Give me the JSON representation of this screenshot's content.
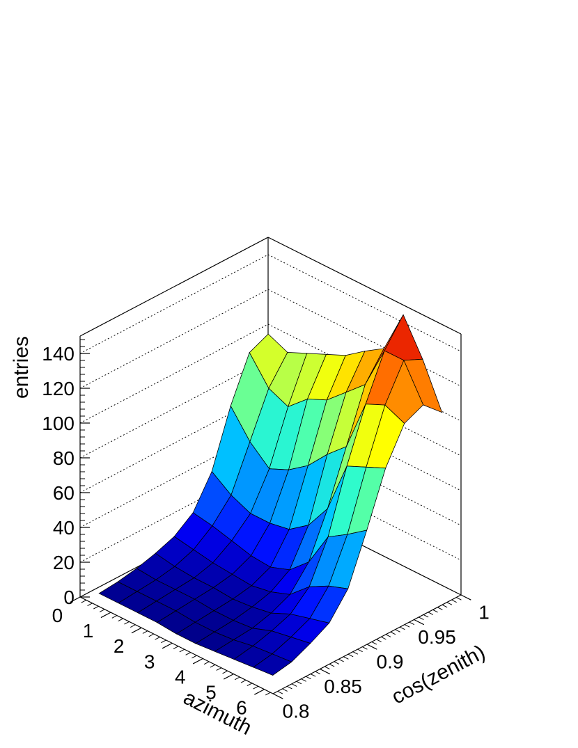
{
  "chart_data": {
    "type": "surface3d",
    "title": "",
    "xlabel": "azimuth",
    "ylabel": "cos(zenith)",
    "zlabel": "entries",
    "xlim": [
      0,
      6.2832
    ],
    "ylim": [
      0.8,
      1.0
    ],
    "zlim": [
      0,
      150
    ],
    "x_ticks": [
      "0",
      "1",
      "2",
      "3",
      "4",
      "5",
      "6"
    ],
    "y_ticks": [
      "0.8",
      "0.85",
      "0.9",
      "0.95",
      "1"
    ],
    "z_ticks": [
      "0",
      "20",
      "40",
      "60",
      "80",
      "100",
      "120",
      "140"
    ],
    "x": [
      0.31,
      0.94,
      1.57,
      2.2,
      2.83,
      3.46,
      4.08,
      4.71,
      5.34,
      5.97
    ],
    "y": [
      0.81,
      0.83,
      0.85,
      0.87,
      0.89,
      0.91,
      0.93,
      0.95,
      0.97,
      0.99
    ],
    "z": [
      [
        2,
        3,
        5,
        8,
        12,
        20,
        38,
        70,
        95,
        100
      ],
      [
        2,
        3,
        4,
        6,
        10,
        18,
        30,
        55,
        80,
        95
      ],
      [
        2,
        3,
        4,
        5,
        8,
        15,
        25,
        45,
        75,
        100
      ],
      [
        2,
        3,
        4,
        5,
        7,
        12,
        25,
        50,
        85,
        105
      ],
      [
        1,
        2,
        3,
        4,
        6,
        11,
        27,
        58,
        90,
        110
      ],
      [
        1,
        2,
        3,
        5,
        8,
        15,
        35,
        70,
        100,
        118
      ],
      [
        2,
        3,
        4,
        7,
        12,
        25,
        50,
        80,
        110,
        125
      ],
      [
        3,
        5,
        8,
        12,
        22,
        45,
        80,
        110,
        135,
        150
      ],
      [
        4,
        6,
        10,
        15,
        28,
        52,
        85,
        115,
        135,
        130
      ],
      [
        5,
        7,
        12,
        18,
        32,
        60,
        90,
        110,
        115,
        105
      ]
    ],
    "colormap": [
      "#00007f",
      "#0000ff",
      "#0080ff",
      "#00c8ff",
      "#33ffc8",
      "#a0ff5f",
      "#ffff00",
      "#ff9900",
      "#ff3300",
      "#b00000"
    ],
    "grid": true,
    "legend": "none"
  }
}
